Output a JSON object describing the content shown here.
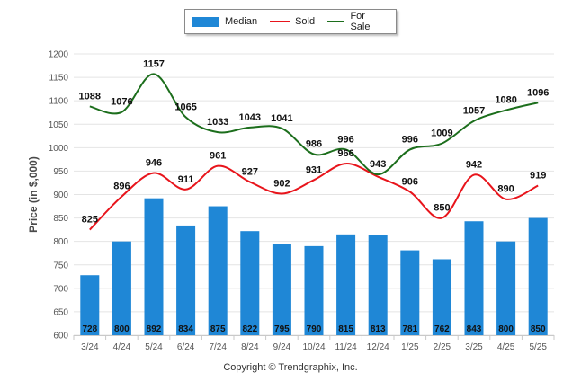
{
  "chart_data": {
    "type": "bar",
    "categories": [
      "3/24",
      "4/24",
      "5/24",
      "6/24",
      "7/24",
      "8/24",
      "9/24",
      "10/24",
      "11/24",
      "12/24",
      "1/25",
      "2/25",
      "3/25",
      "4/25",
      "5/25"
    ],
    "ylabel": "Price (in $,000)",
    "ylim": [
      600,
      1200
    ],
    "yticks": [
      600,
      650,
      700,
      750,
      800,
      850,
      900,
      950,
      1000,
      1050,
      1100,
      1150,
      1200
    ],
    "grid": true,
    "legend_position": "top-center",
    "series": [
      {
        "name": "Median",
        "kind": "bar",
        "color": "#1f87d6",
        "values": [
          728,
          800,
          892,
          834,
          875,
          822,
          795,
          790,
          815,
          813,
          781,
          762,
          843,
          800,
          850
        ]
      },
      {
        "name": "Sold",
        "kind": "line",
        "color": "#e8141b",
        "values": [
          825,
          896,
          946,
          911,
          961,
          927,
          902,
          931,
          966,
          938,
          906,
          850,
          942,
          890,
          919
        ]
      },
      {
        "name": "For Sale",
        "kind": "line",
        "color": "#1c6e1c",
        "values": [
          1088,
          1076,
          1157,
          1065,
          1033,
          1043,
          1041,
          986,
          996,
          943,
          996,
          1009,
          1057,
          1080,
          1096
        ]
      }
    ],
    "sold_label_texts": [
      "825",
      "896",
      "946",
      "911",
      "961",
      "927",
      "902",
      "931",
      "966",
      "",
      "906",
      "850",
      "942",
      "890",
      "919"
    ],
    "forsale_label_texts": [
      "1088",
      "1076",
      "1157",
      "1065",
      "1033",
      "1043",
      "1041",
      "986",
      "996",
      "943",
      "996",
      "1009",
      "1057",
      "1080",
      "1096"
    ],
    "credit": "Copyright © Trendgraphix, Inc."
  }
}
